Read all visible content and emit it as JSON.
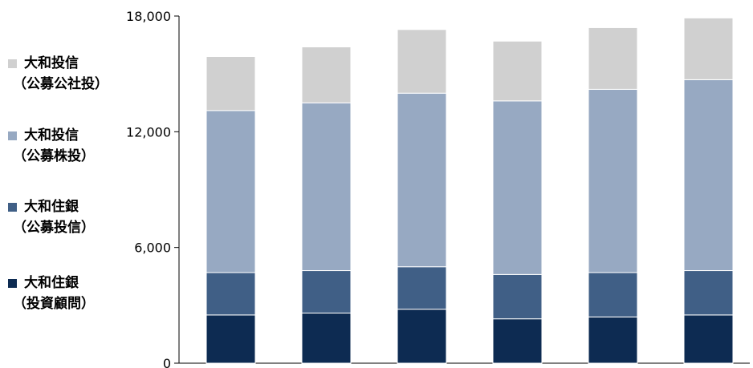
{
  "chart_data": {
    "type": "bar",
    "stacked": true,
    "categories": [
      "",
      "",
      "",
      "",
      "",
      ""
    ],
    "ylim": [
      0,
      18000
    ],
    "yticks": [
      0,
      6000,
      12000,
      18000
    ],
    "ytick_labels": [
      "0",
      "6,000",
      "12,000",
      "18,000"
    ],
    "grid": false,
    "legend_position": "left",
    "series": [
      {
        "name": "大和住銀（投資顧問）",
        "legend_lines": [
          "大和住銀",
          "（投資顧問）"
        ],
        "color": "#0d2b52",
        "values": [
          2500,
          2600,
          2800,
          2300,
          2400,
          2500
        ]
      },
      {
        "name": "大和住銀（公募投信）",
        "legend_lines": [
          "大和住銀",
          "（公募投信）"
        ],
        "color": "#405f86",
        "values": [
          2200,
          2200,
          2200,
          2300,
          2300,
          2300
        ]
      },
      {
        "name": "大和投信（公募株投）",
        "legend_lines": [
          "大和投信",
          "（公募株投）"
        ],
        "color": "#97a9c2",
        "values": [
          8400,
          8700,
          9000,
          9000,
          9500,
          9900
        ]
      },
      {
        "name": "大和投信（公募公社投）",
        "legend_lines": [
          "大和投信",
          "（公募公社投）"
        ],
        "color": "#d0d0d0",
        "values": [
          2800,
          2900,
          3300,
          3100,
          3200,
          3200
        ]
      }
    ]
  }
}
